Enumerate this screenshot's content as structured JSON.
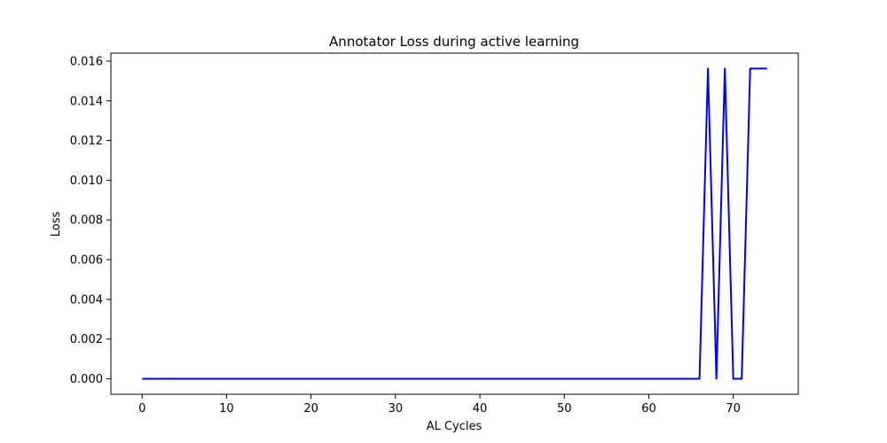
{
  "chart_data": {
    "type": "line",
    "title": "Annotator Loss during active learning",
    "xlabel": "AL Cycles",
    "ylabel": "Loss",
    "xlim": [
      -3.7,
      77.7
    ],
    "ylim": [
      -0.00078,
      0.0164
    ],
    "x_ticks": [
      0,
      10,
      20,
      30,
      40,
      50,
      60,
      70
    ],
    "y_ticks": [
      0.0,
      0.002,
      0.004,
      0.006,
      0.008,
      0.01,
      0.012,
      0.014,
      0.016
    ],
    "y_tick_labels": [
      "0.000",
      "0.002",
      "0.004",
      "0.006",
      "0.008",
      "0.010",
      "0.012",
      "0.014",
      "0.016"
    ],
    "grid": false,
    "series": [
      {
        "color": "#0000ff",
        "x": [
          0,
          66,
          67,
          68,
          69,
          70,
          71,
          72,
          73,
          74
        ],
        "y": [
          0.0,
          0.0,
          0.015625,
          0.0,
          0.015625,
          0.0,
          0.0,
          0.015625,
          0.015625,
          0.015625
        ]
      }
    ]
  }
}
